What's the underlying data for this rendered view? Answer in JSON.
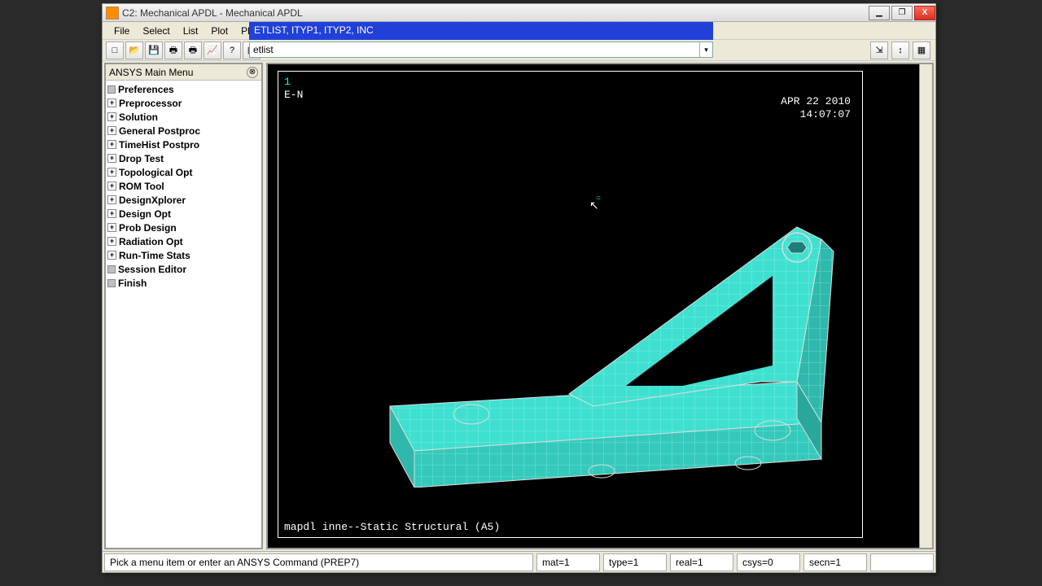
{
  "window": {
    "title": "C2: Mechanical APDL - Mechanical APDL"
  },
  "winbuttons": {
    "min": "▁",
    "max": "❐",
    "close": "X"
  },
  "menubar": {
    "items": [
      "File",
      "Select",
      "List",
      "Plot",
      "PlotCtrls"
    ]
  },
  "command_hint": "ETLIST, ITYP1, ITYP2, INC",
  "command_input": "etlist",
  "toolbar_icons": [
    "□",
    "📂",
    "💾",
    "🖶",
    "🖶",
    "📈",
    "?",
    "▦"
  ],
  "right_toolbar_icons": [
    "⇲",
    "↕",
    "▦"
  ],
  "sidebar": {
    "title": "ANSYS Main Menu",
    "items": [
      {
        "label": "Preferences",
        "icon": "square"
      },
      {
        "label": "Preprocessor",
        "icon": "plus"
      },
      {
        "label": "Solution",
        "icon": "plus"
      },
      {
        "label": "General Postproc",
        "icon": "plus"
      },
      {
        "label": "TimeHist Postpro",
        "icon": "plus"
      },
      {
        "label": "Drop Test",
        "icon": "plus"
      },
      {
        "label": "Topological Opt",
        "icon": "plus"
      },
      {
        "label": "ROM Tool",
        "icon": "plus"
      },
      {
        "label": "DesignXplorer",
        "icon": "plus"
      },
      {
        "label": "Design Opt",
        "icon": "plus"
      },
      {
        "label": "Prob Design",
        "icon": "plus"
      },
      {
        "label": "Radiation Opt",
        "icon": "plus"
      },
      {
        "label": "Run-Time Stats",
        "icon": "plus"
      },
      {
        "label": "Session Editor",
        "icon": "square"
      },
      {
        "label": "Finish",
        "icon": "square"
      }
    ]
  },
  "graphics": {
    "frame_number": "1",
    "mode": "E-N",
    "date": "APR 22 2010",
    "time": "14:07:07",
    "caption": "mapdl inne--Static Structural (A5)",
    "mesh_color": "#40e0d0",
    "mesh_edge": "#a0f5ee",
    "bg": "#000000"
  },
  "statusbar": {
    "prompt": "Pick a menu item or enter an ANSYS Command (PREP7)",
    "cells": [
      "mat=1",
      "type=1",
      "real=1",
      "csys=0",
      "secn=1",
      ""
    ]
  }
}
